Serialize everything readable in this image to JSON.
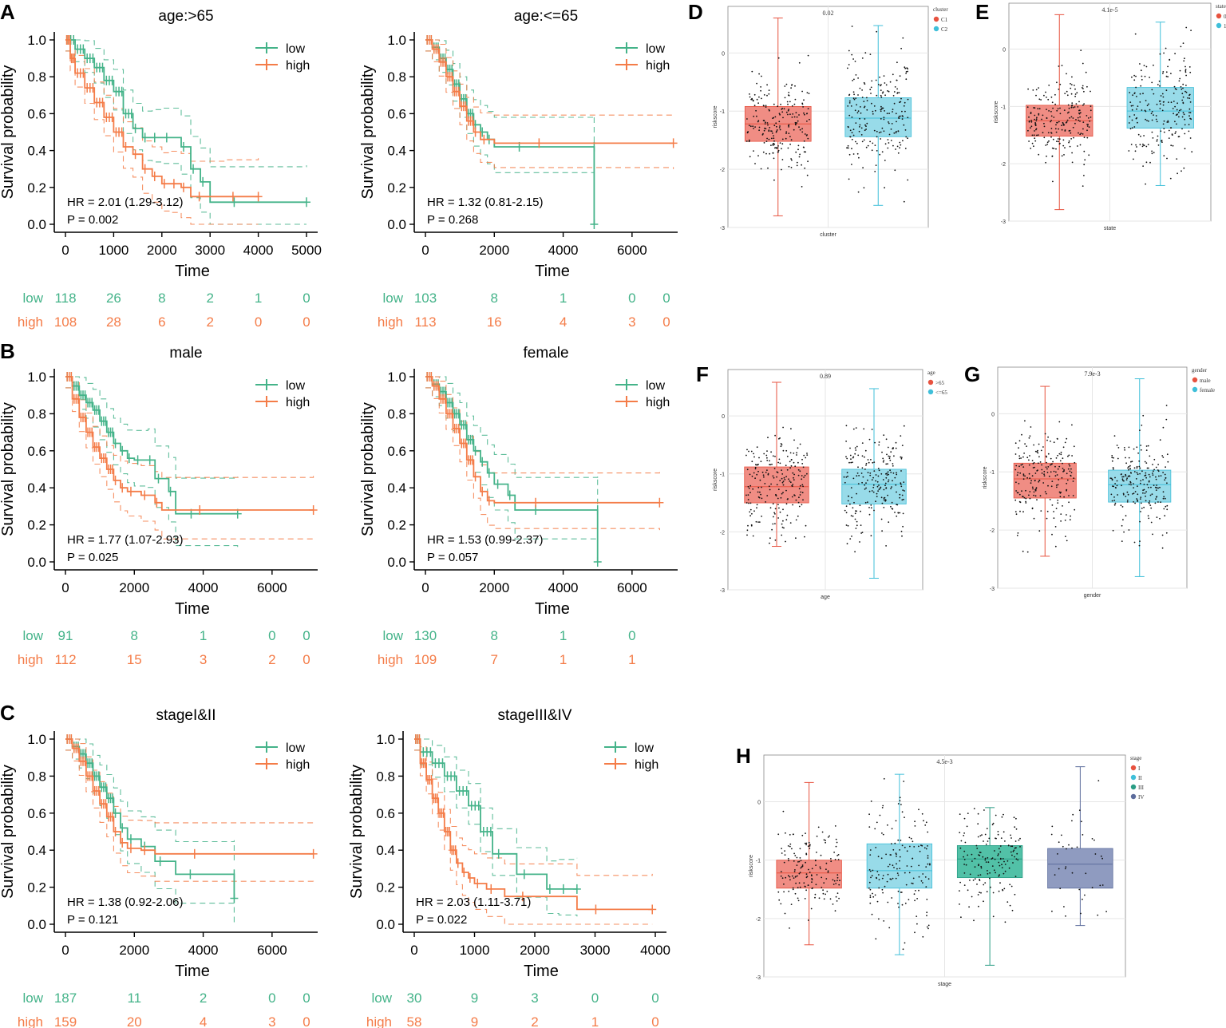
{
  "colors": {
    "low": "#44b389",
    "high": "#f47c48",
    "box_red": "#f08d84",
    "box_red_line": "#e7523f",
    "box_cyan": "#98dbe9",
    "box_cyan_line": "#3fbfd9",
    "box_teal": "#52c1a7",
    "box_teal_line": "#2a9d85",
    "box_navy": "#8f9bc0",
    "box_navy_line": "#5c6c9c",
    "grid": "#e6e6e6"
  },
  "chart_data": [
    {
      "panel": "A",
      "type": "line",
      "subtype": "kaplan-meier",
      "title": "age:>65",
      "xlabel": "Time",
      "ylabel": "Survival probability",
      "xlim": [
        0,
        5000
      ],
      "xticks": [
        0,
        1000,
        2000,
        3000,
        4000,
        5000
      ],
      "ylim": [
        0,
        1
      ],
      "yticks": [
        "0.0",
        "0.2",
        "0.4",
        "0.6",
        "0.8",
        "1.0"
      ],
      "legend": [
        "low",
        "high"
      ],
      "hr_text": "HR = 2.01 (1.29-3.12)",
      "p_text": "P = 0.002",
      "series": [
        {
          "name": "low",
          "x": [
            0,
            200,
            400,
            600,
            800,
            1000,
            1200,
            1400,
            1600,
            1800,
            2000,
            2400,
            2600,
            2800,
            3000,
            5000
          ],
          "y": [
            1.0,
            0.95,
            0.9,
            0.85,
            0.78,
            0.72,
            0.6,
            0.52,
            0.47,
            0.47,
            0.47,
            0.42,
            0.3,
            0.23,
            0.12,
            0.12
          ]
        },
        {
          "name": "high",
          "x": [
            0,
            100,
            200,
            400,
            600,
            800,
            1000,
            1200,
            1400,
            1600,
            1800,
            2000,
            2200,
            2400,
            2600,
            3300,
            4000
          ],
          "y": [
            1.0,
            0.9,
            0.82,
            0.74,
            0.66,
            0.58,
            0.5,
            0.42,
            0.38,
            0.3,
            0.26,
            0.22,
            0.22,
            0.2,
            0.15,
            0.15,
            0.15
          ]
        }
      ],
      "risk_table": {
        "rows": [
          "low",
          "high"
        ],
        "values": [
          [
            118,
            26,
            8,
            2,
            1,
            0
          ],
          [
            108,
            28,
            6,
            2,
            0,
            0
          ]
        ]
      }
    },
    {
      "panel": "A2",
      "type": "line",
      "subtype": "kaplan-meier",
      "title": "age:<=65",
      "xlabel": "Time",
      "ylabel": "Survival probability",
      "xlim": [
        0,
        7000
      ],
      "xticks": [
        0,
        2000,
        4000,
        6000
      ],
      "ylim": [
        0,
        1
      ],
      "yticks": [
        "0.0",
        "0.2",
        "0.4",
        "0.6",
        "0.8",
        "1.0"
      ],
      "legend": [
        "low",
        "high"
      ],
      "hr_text": "HR = 1.32 (0.81-2.15)",
      "p_text": "P = 0.268",
      "series": [
        {
          "name": "low",
          "x": [
            0,
            200,
            400,
            600,
            800,
            1000,
            1200,
            1400,
            1600,
            1800,
            2000,
            4900,
            4900
          ],
          "y": [
            1.0,
            0.96,
            0.9,
            0.84,
            0.76,
            0.68,
            0.6,
            0.54,
            0.5,
            0.46,
            0.42,
            0.42,
            0.0
          ]
        },
        {
          "name": "high",
          "x": [
            0,
            200,
            400,
            600,
            800,
            1000,
            1200,
            1400,
            1600,
            2000,
            7200
          ],
          "y": [
            1.0,
            0.95,
            0.88,
            0.8,
            0.72,
            0.64,
            0.56,
            0.5,
            0.46,
            0.44,
            0.44
          ]
        }
      ],
      "risk_table": {
        "rows": [
          "low",
          "high"
        ],
        "values": [
          [
            103,
            8,
            1,
            0,
            0
          ],
          [
            113,
            16,
            4,
            3,
            0
          ]
        ]
      }
    },
    {
      "panel": "B",
      "type": "line",
      "subtype": "kaplan-meier",
      "title": "male",
      "xlabel": "Time",
      "ylabel": "Survival probability",
      "xlim": [
        0,
        7000
      ],
      "xticks": [
        0,
        2000,
        4000,
        6000
      ],
      "ylim": [
        0,
        1
      ],
      "yticks": [
        "0.0",
        "0.2",
        "0.4",
        "0.6",
        "0.8",
        "1.0"
      ],
      "legend": [
        "low",
        "high"
      ],
      "hr_text": "HR = 1.77 (1.07-2.93)",
      "p_text": "P = 0.025",
      "series": [
        {
          "name": "low",
          "x": [
            0,
            200,
            400,
            600,
            800,
            1000,
            1200,
            1400,
            1600,
            1800,
            2000,
            2400,
            2600,
            3000,
            3200,
            5000
          ],
          "y": [
            1.0,
            0.95,
            0.9,
            0.86,
            0.82,
            0.76,
            0.7,
            0.64,
            0.6,
            0.56,
            0.55,
            0.55,
            0.45,
            0.38,
            0.26,
            0.26
          ]
        },
        {
          "name": "high",
          "x": [
            0,
            200,
            400,
            600,
            800,
            1000,
            1200,
            1400,
            1600,
            1800,
            2200,
            2600,
            2800,
            7200
          ],
          "y": [
            1.0,
            0.88,
            0.78,
            0.7,
            0.62,
            0.56,
            0.5,
            0.44,
            0.4,
            0.38,
            0.36,
            0.32,
            0.28,
            0.28
          ]
        }
      ],
      "risk_table": {
        "rows": [
          "low",
          "high"
        ],
        "values": [
          [
            91,
            8,
            1,
            0,
            0
          ],
          [
            112,
            15,
            3,
            2,
            0
          ]
        ]
      }
    },
    {
      "panel": "B2",
      "type": "line",
      "subtype": "kaplan-meier",
      "title": "female",
      "xlabel": "Time",
      "ylabel": "Survival probability",
      "xlim": [
        0,
        7000
      ],
      "xticks": [
        0,
        2000,
        4000,
        6000
      ],
      "ylim": [
        0,
        1
      ],
      "yticks": [
        "0.0",
        "0.2",
        "0.4",
        "0.6",
        "0.8",
        "1.0"
      ],
      "legend": [
        "low",
        "high"
      ],
      "hr_text": "HR = 1.53 (0.99-2.37)",
      "p_text": "P = 0.057",
      "series": [
        {
          "name": "low",
          "x": [
            0,
            200,
            400,
            600,
            800,
            1000,
            1200,
            1400,
            1600,
            1800,
            2000,
            2400,
            2600,
            5000,
            5000
          ],
          "y": [
            1.0,
            0.96,
            0.92,
            0.86,
            0.8,
            0.74,
            0.66,
            0.6,
            0.54,
            0.48,
            0.42,
            0.36,
            0.28,
            0.28,
            0.0
          ]
        },
        {
          "name": "high",
          "x": [
            0,
            200,
            400,
            600,
            800,
            1000,
            1200,
            1400,
            1600,
            1800,
            2000,
            6800
          ],
          "y": [
            1.0,
            0.95,
            0.88,
            0.8,
            0.72,
            0.64,
            0.55,
            0.46,
            0.38,
            0.33,
            0.32,
            0.32
          ]
        }
      ],
      "risk_table": {
        "rows": [
          "low",
          "high"
        ],
        "values": [
          [
            130,
            8,
            1,
            0
          ],
          [
            109,
            7,
            1,
            1
          ]
        ]
      }
    },
    {
      "panel": "C",
      "type": "line",
      "subtype": "kaplan-meier",
      "title": "stageI&II",
      "xlabel": "Time",
      "ylabel": "Survival probability",
      "xlim": [
        0,
        7000
      ],
      "xticks": [
        0,
        2000,
        4000,
        6000
      ],
      "ylim": [
        0,
        1
      ],
      "yticks": [
        "0.0",
        "0.2",
        "0.4",
        "0.6",
        "0.8",
        "1.0"
      ],
      "legend": [
        "low",
        "high"
      ],
      "hr_text": "HR = 1.38 (0.92-2.06)",
      "p_text": "P = 0.121",
      "series": [
        {
          "name": "low",
          "x": [
            0,
            200,
            400,
            600,
            800,
            1000,
            1200,
            1400,
            1600,
            1800,
            2200,
            2600,
            3200,
            4900,
            4900
          ],
          "y": [
            1.0,
            0.96,
            0.92,
            0.87,
            0.8,
            0.74,
            0.68,
            0.6,
            0.52,
            0.46,
            0.42,
            0.34,
            0.27,
            0.27,
            0.14
          ]
        },
        {
          "name": "high",
          "x": [
            0,
            200,
            400,
            600,
            800,
            1000,
            1200,
            1400,
            1600,
            1800,
            2200,
            2600,
            7200
          ],
          "y": [
            1.0,
            0.95,
            0.88,
            0.8,
            0.72,
            0.65,
            0.58,
            0.5,
            0.44,
            0.41,
            0.4,
            0.38,
            0.38
          ]
        }
      ],
      "risk_table": {
        "rows": [
          "low",
          "high"
        ],
        "values": [
          [
            187,
            11,
            2,
            0,
            0
          ],
          [
            159,
            20,
            4,
            3,
            0
          ]
        ]
      }
    },
    {
      "panel": "C2",
      "type": "line",
      "subtype": "kaplan-meier",
      "title": "stageIII&IV",
      "xlabel": "Time",
      "ylabel": "Survival probability",
      "xlim": [
        0,
        4000
      ],
      "xticks": [
        0,
        1000,
        2000,
        3000,
        4000
      ],
      "ylim": [
        0,
        1
      ],
      "yticks": [
        "0.0",
        "0.2",
        "0.4",
        "0.6",
        "0.8",
        "1.0"
      ],
      "legend": [
        "low",
        "high"
      ],
      "hr_text": "HR = 2.03 (1.11-3.71)",
      "p_text": "P = 0.022",
      "series": [
        {
          "name": "low",
          "x": [
            0,
            100,
            300,
            500,
            700,
            900,
            1100,
            1300,
            1700,
            2200,
            2400,
            2700
          ],
          "y": [
            1.0,
            0.93,
            0.87,
            0.8,
            0.72,
            0.64,
            0.5,
            0.38,
            0.27,
            0.19,
            0.19,
            0.19
          ]
        },
        {
          "name": "high",
          "x": [
            0,
            100,
            200,
            300,
            400,
            500,
            600,
            700,
            800,
            900,
            1000,
            1200,
            1500,
            2700,
            3950
          ],
          "y": [
            1.0,
            0.87,
            0.78,
            0.68,
            0.6,
            0.5,
            0.4,
            0.33,
            0.28,
            0.25,
            0.22,
            0.19,
            0.15,
            0.08,
            0.08
          ]
        }
      ],
      "risk_table": {
        "rows": [
          "low",
          "high"
        ],
        "values": [
          [
            30,
            9,
            3,
            0,
            0
          ],
          [
            58,
            9,
            2,
            1,
            0
          ]
        ]
      }
    },
    {
      "panel": "D",
      "type": "box",
      "xlabel": "cluster",
      "ylabel": "riskscore",
      "pvalue": "0.02",
      "ylim": [
        -3,
        0.8
      ],
      "yticks": [
        0,
        -1,
        -2,
        -3
      ],
      "legend_title": "cluster",
      "legend": [
        "C1",
        "C2"
      ],
      "boxes": [
        {
          "name": "C1",
          "color": "red",
          "min": -2.8,
          "q1": -1.52,
          "median": -1.22,
          "q3": -0.92,
          "max": 0.6
        },
        {
          "name": "C2",
          "color": "cyan",
          "min": -2.62,
          "q1": -1.44,
          "median": -1.12,
          "q3": -0.77,
          "max": 0.47
        }
      ]
    },
    {
      "panel": "E",
      "type": "box",
      "xlabel": "state",
      "ylabel": "riskscore",
      "pvalue": "4.1e-5",
      "ylim": [
        -3,
        0.8
      ],
      "yticks": [
        0,
        -1,
        -2,
        -3
      ],
      "legend_title": "state",
      "legend": [
        "0",
        "1"
      ],
      "boxes": [
        {
          "name": "0",
          "color": "red",
          "min": -2.8,
          "q1": -1.52,
          "median": -1.25,
          "q3": -0.98,
          "max": 0.6
        },
        {
          "name": "1",
          "color": "cyan",
          "min": -2.38,
          "q1": -1.38,
          "median": -1.08,
          "q3": -0.67,
          "max": 0.47
        }
      ]
    },
    {
      "panel": "F",
      "type": "box",
      "xlabel": "age",
      "ylabel": "riskscore",
      "pvalue": "0.89",
      "ylim": [
        -3,
        0.8
      ],
      "yticks": [
        0,
        -1,
        -2,
        -3
      ],
      "legend_title": "age",
      "legend": [
        ">65",
        "<=65"
      ],
      "boxes": [
        {
          "name": ">65",
          "color": "red",
          "min": -2.25,
          "q1": -1.5,
          "median": -1.22,
          "q3": -0.88,
          "max": 0.58
        },
        {
          "name": "<=65",
          "color": "cyan",
          "min": -2.8,
          "q1": -1.52,
          "median": -1.18,
          "q3": -0.92,
          "max": 0.47
        }
      ]
    },
    {
      "panel": "G",
      "type": "box",
      "xlabel": "gender",
      "ylabel": "riskscore",
      "pvalue": "7.9e-3",
      "ylim": [
        -3,
        0.8
      ],
      "yticks": [
        0,
        -1,
        -2,
        -3
      ],
      "legend_title": "gender",
      "legend": [
        "male",
        "female"
      ],
      "boxes": [
        {
          "name": "male",
          "color": "red",
          "min": -2.45,
          "q1": -1.45,
          "median": -1.12,
          "q3": -0.85,
          "max": 0.47
        },
        {
          "name": "female",
          "color": "cyan",
          "min": -2.8,
          "q1": -1.52,
          "median": -1.22,
          "q3": -0.97,
          "max": 0.6
        }
      ]
    },
    {
      "panel": "H",
      "type": "box",
      "xlabel": "stage",
      "ylabel": "riskscore",
      "pvalue": "4.5e-3",
      "ylim": [
        -3,
        0.8
      ],
      "yticks": [
        0,
        -1,
        -2,
        -3
      ],
      "legend_title": "stage",
      "legend": [
        "I",
        "II",
        "III",
        "IV"
      ],
      "boxes": [
        {
          "name": "I",
          "color": "red",
          "min": -2.45,
          "q1": -1.48,
          "median": -1.22,
          "q3": -1.0,
          "max": 0.33
        },
        {
          "name": "II",
          "color": "cyan",
          "min": -2.62,
          "q1": -1.48,
          "median": -1.18,
          "q3": -0.72,
          "max": 0.47
        },
        {
          "name": "III",
          "color": "teal",
          "min": -2.8,
          "q1": -1.3,
          "median": -0.98,
          "q3": -0.75,
          "max": -0.1
        },
        {
          "name": "IV",
          "color": "navy",
          "min": -2.12,
          "q1": -1.48,
          "median": -1.07,
          "q3": -0.8,
          "max": 0.6
        }
      ]
    }
  ]
}
